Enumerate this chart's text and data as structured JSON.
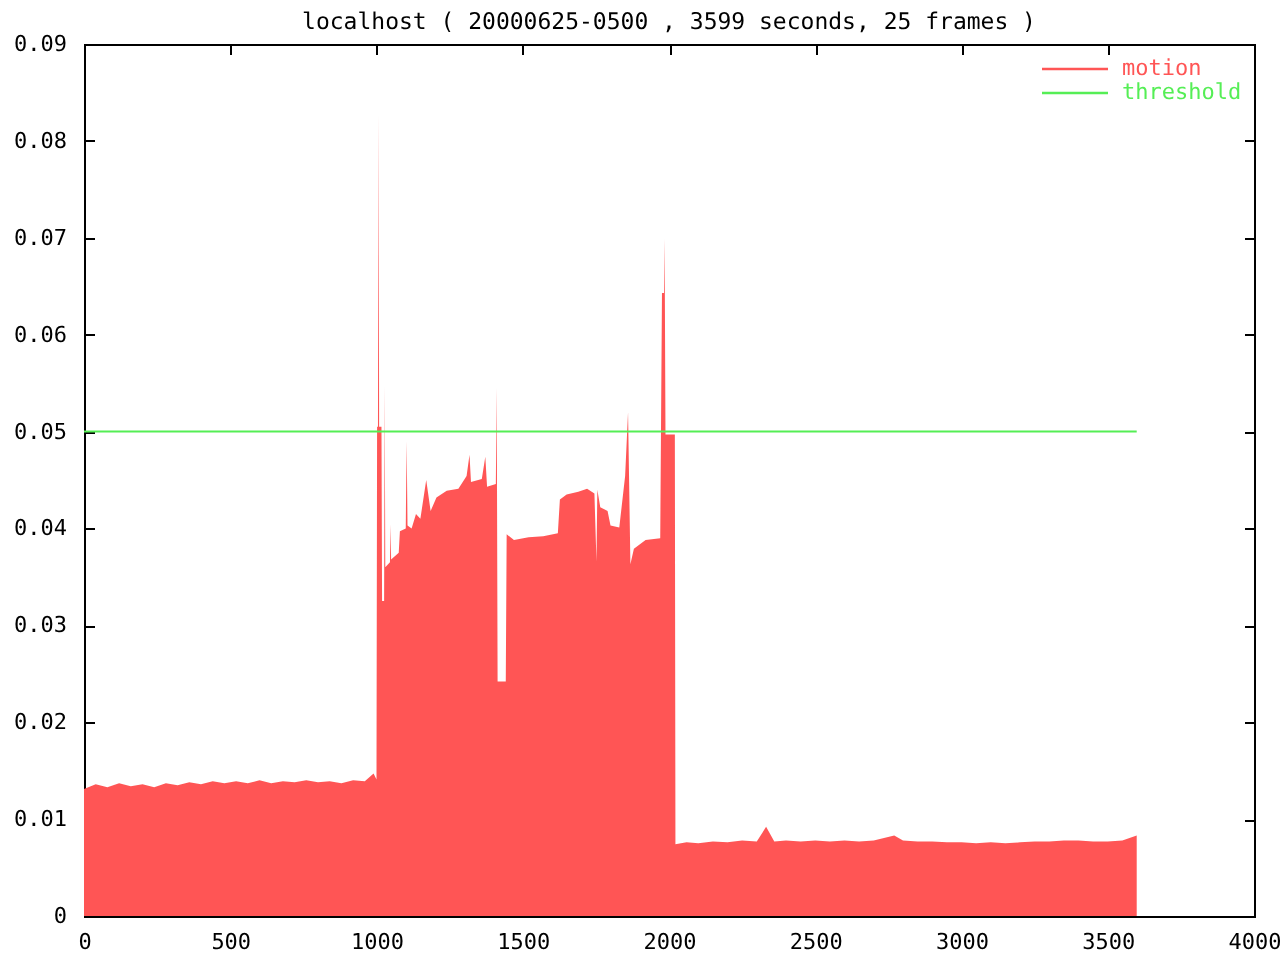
{
  "chart_data": {
    "type": "area",
    "title": "localhost ( 20000625-0500 , 3599 seconds, 25 frames )",
    "x": [
      0,
      40,
      80,
      120,
      160,
      200,
      240,
      280,
      320,
      360,
      400,
      440,
      480,
      520,
      560,
      600,
      640,
      680,
      720,
      760,
      800,
      840,
      880,
      920,
      960,
      990,
      1000,
      1002,
      1005,
      1007,
      1009,
      1017,
      1019,
      1026,
      1028,
      1030,
      1046,
      1048,
      1050,
      1076,
      1080,
      1100,
      1103,
      1106,
      1120,
      1135,
      1150,
      1170,
      1185,
      1205,
      1240,
      1280,
      1308,
      1318,
      1323,
      1360,
      1372,
      1378,
      1408,
      1411,
      1414,
      1442,
      1445,
      1470,
      1520,
      1570,
      1620,
      1627,
      1650,
      1690,
      1720,
      1745,
      1752,
      1755,
      1765,
      1790,
      1800,
      1830,
      1850,
      1860,
      1868,
      1880,
      1920,
      1970,
      1976,
      1983,
      1985,
      1988,
      2020,
      2022,
      2060,
      2100,
      2150,
      2200,
      2250,
      2300,
      2332,
      2360,
      2400,
      2450,
      2500,
      2550,
      2600,
      2650,
      2700,
      2770,
      2800,
      2850,
      2900,
      2950,
      3000,
      3050,
      3100,
      3150,
      3200,
      3250,
      3300,
      3350,
      3400,
      3450,
      3500,
      3550,
      3599
    ],
    "series": [
      {
        "name": "motion",
        "color": "#ff5555",
        "values": [
          0.0131,
          0.0136,
          0.0133,
          0.0137,
          0.0134,
          0.0136,
          0.0133,
          0.0137,
          0.0135,
          0.0138,
          0.0136,
          0.0139,
          0.0137,
          0.0139,
          0.0137,
          0.014,
          0.0137,
          0.0139,
          0.0138,
          0.014,
          0.0138,
          0.0139,
          0.0137,
          0.014,
          0.0139,
          0.0147,
          0.0141,
          0.0505,
          0.0505,
          0.0827,
          0.0505,
          0.0505,
          0.0325,
          0.0325,
          0.0547,
          0.036,
          0.0365,
          0.0404,
          0.0368,
          0.0375,
          0.0397,
          0.04,
          0.049,
          0.0403,
          0.04,
          0.0415,
          0.041,
          0.045,
          0.0418,
          0.0432,
          0.0439,
          0.0441,
          0.0454,
          0.0476,
          0.0448,
          0.0451,
          0.0474,
          0.0443,
          0.0446,
          0.0545,
          0.0242,
          0.0242,
          0.0394,
          0.0388,
          0.0391,
          0.0392,
          0.0395,
          0.043,
          0.0435,
          0.0438,
          0.0441,
          0.0436,
          0.0366,
          0.044,
          0.0422,
          0.0418,
          0.0403,
          0.0401,
          0.0454,
          0.052,
          0.0363,
          0.0379,
          0.0388,
          0.039,
          0.0643,
          0.0643,
          0.0699,
          0.0497,
          0.0497,
          0.0074,
          0.0076,
          0.0075,
          0.0077,
          0.0076,
          0.0078,
          0.0077,
          0.0092,
          0.0077,
          0.0078,
          0.0077,
          0.0078,
          0.0077,
          0.0078,
          0.0077,
          0.0078,
          0.0083,
          0.0078,
          0.0077,
          0.0077,
          0.0076,
          0.0076,
          0.0075,
          0.0076,
          0.0075,
          0.0076,
          0.0077,
          0.0077,
          0.0078,
          0.0078,
          0.0077,
          0.0077,
          0.0078,
          0.0083
        ]
      },
      {
        "name": "threshold",
        "type": "line",
        "color": "#55ee55",
        "x": [
          0,
          3599
        ],
        "values": [
          0.05,
          0.05
        ]
      }
    ],
    "xlim": [
      0,
      4000
    ],
    "xticks": [
      0,
      500,
      1000,
      1500,
      2000,
      2500,
      3000,
      3500,
      4000
    ],
    "ylim": [
      0,
      0.09
    ],
    "yticks": [
      0,
      0.01,
      0.02,
      0.03,
      0.04,
      0.05,
      0.06,
      0.07,
      0.08,
      0.09
    ],
    "grid": false,
    "legend": "top right"
  }
}
